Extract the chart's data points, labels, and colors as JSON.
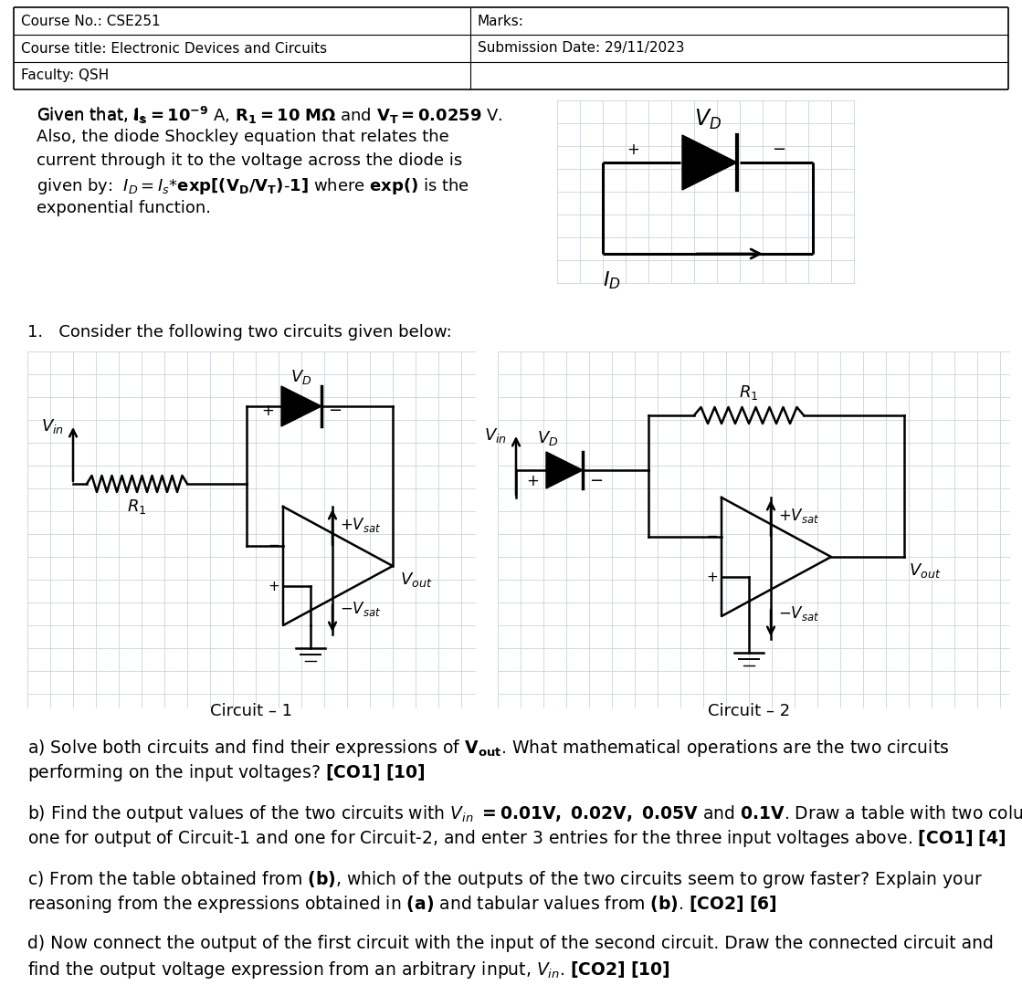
{
  "header": {
    "col1_row1": "Course No.: CSE251",
    "col1_row2": "Course title: Electronic Devices and Circuits",
    "col1_row3": "Faculty: QSH",
    "col2_row1": "Marks:",
    "col2_row2": "Submission Date: 29/11/2023",
    "col2_row3": ""
  },
  "circuit1_label": "Circuit – 1",
  "circuit2_label": "Circuit – 2",
  "bg_color": "#ffffff",
  "text_color": "#000000",
  "grid_color_light": "#c8d4e0",
  "font_size_header": 11,
  "font_size_body": 13,
  "font_size_q": 13
}
